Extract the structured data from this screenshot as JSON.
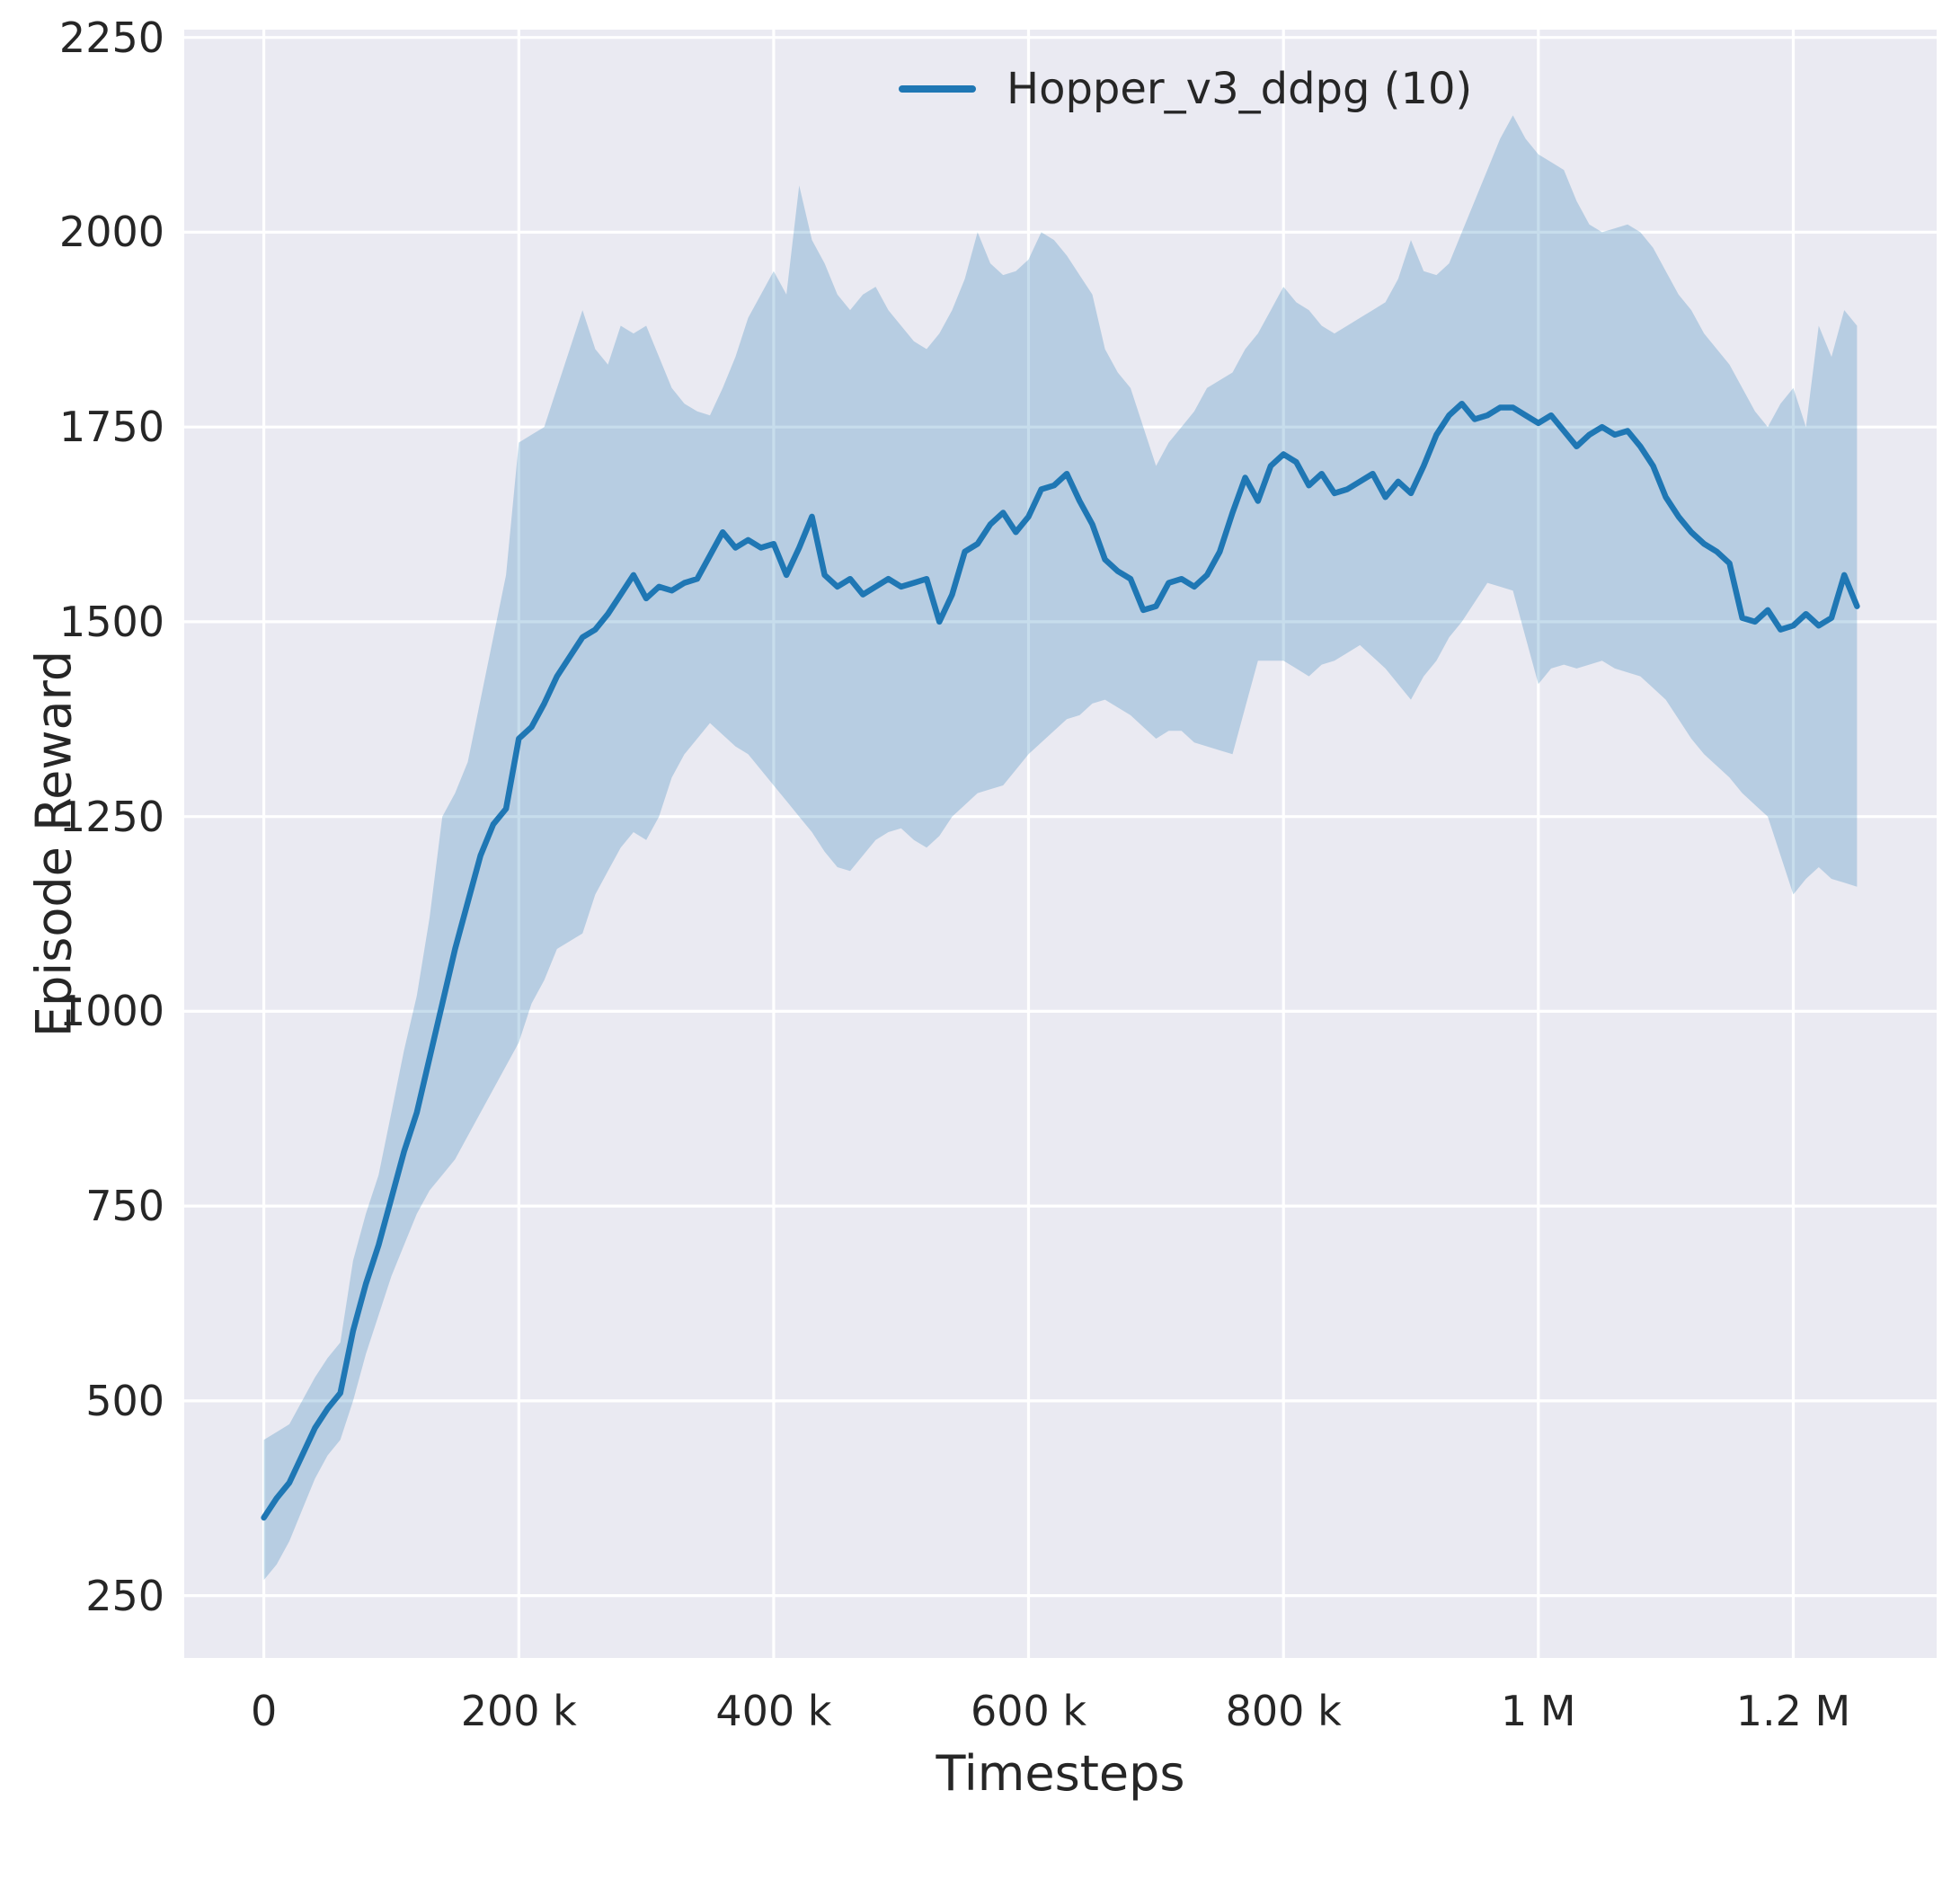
{
  "chart_data": {
    "type": "line",
    "title": "",
    "xlabel": "Timesteps",
    "ylabel": "Episode Reward",
    "legend": [
      "Hopper_v3_ddpg (10)"
    ],
    "legend_position": "upper right area inside plot, no frame",
    "grid": true,
    "plot_background": "#eaeaf2",
    "grid_color": "#ffffff",
    "line_color": "#1f77b4",
    "band_fill": "rgba(31,119,180,0.25)",
    "xlim": [
      -62500,
      1312500
    ],
    "ylim": [
      170,
      2260
    ],
    "xticks": {
      "values": [
        0,
        200000,
        400000,
        600000,
        800000,
        1000000,
        1200000
      ],
      "labels": [
        "0",
        "200 k",
        "400 k",
        "600 k",
        "800 k",
        "1 M",
        "1.2 M"
      ]
    },
    "yticks": {
      "values": [
        250,
        500,
        750,
        1000,
        1250,
        1500,
        1750,
        2000,
        2250
      ],
      "labels": [
        "250",
        "500",
        "750",
        "1000",
        "1250",
        "1500",
        "1750",
        "2000",
        "2250"
      ]
    },
    "x_units": "timesteps, values below in thousands",
    "x_k": [
      0,
      10,
      20,
      30,
      40,
      50,
      60,
      70,
      80,
      90,
      100,
      110,
      120,
      130,
      140,
      150,
      160,
      170,
      180,
      190,
      200,
      210,
      220,
      230,
      240,
      250,
      260,
      270,
      280,
      290,
      300,
      310,
      320,
      330,
      340,
      350,
      360,
      370,
      380,
      390,
      400,
      410,
      420,
      430,
      440,
      450,
      460,
      470,
      480,
      490,
      500,
      510,
      520,
      530,
      540,
      550,
      560,
      570,
      580,
      590,
      600,
      610,
      620,
      630,
      640,
      650,
      660,
      670,
      680,
      690,
      700,
      710,
      720,
      730,
      740,
      750,
      760,
      770,
      780,
      790,
      800,
      810,
      820,
      830,
      840,
      850,
      860,
      870,
      880,
      890,
      900,
      910,
      920,
      930,
      940,
      950,
      960,
      970,
      980,
      990,
      1000,
      1010,
      1020,
      1030,
      1040,
      1050,
      1060,
      1070,
      1080,
      1090,
      1100,
      1110,
      1120,
      1130,
      1140,
      1150,
      1160,
      1170,
      1180,
      1190,
      1200,
      1210,
      1220,
      1230,
      1240,
      1250
    ],
    "series": [
      {
        "name": "Hopper_v3_ddpg (10)",
        "mean": [
          350,
          375,
          395,
          430,
          465,
          490,
          510,
          590,
          650,
          700,
          760,
          820,
          870,
          940,
          1010,
          1080,
          1140,
          1200,
          1240,
          1260,
          1350,
          1365,
          1395,
          1430,
          1455,
          1480,
          1490,
          1510,
          1535,
          1560,
          1530,
          1545,
          1540,
          1550,
          1555,
          1585,
          1615,
          1595,
          1605,
          1595,
          1600,
          1560,
          1595,
          1635,
          1560,
          1545,
          1555,
          1535,
          1545,
          1555,
          1545,
          1550,
          1555,
          1500,
          1535,
          1590,
          1600,
          1625,
          1640,
          1615,
          1635,
          1670,
          1675,
          1690,
          1655,
          1625,
          1580,
          1565,
          1555,
          1515,
          1520,
          1550,
          1555,
          1545,
          1560,
          1590,
          1640,
          1685,
          1655,
          1700,
          1715,
          1705,
          1675,
          1690,
          1665,
          1670,
          1680,
          1690,
          1660,
          1680,
          1665,
          1700,
          1740,
          1765,
          1780,
          1760,
          1765,
          1775,
          1775,
          1765,
          1755,
          1765,
          1745,
          1725,
          1740,
          1750,
          1740,
          1745,
          1725,
          1700,
          1660,
          1635,
          1615,
          1600,
          1590,
          1575,
          1505,
          1500,
          1515,
          1490,
          1495,
          1510,
          1495,
          1505,
          1560,
          1520
        ],
        "lower": [
          270,
          290,
          320,
          360,
          400,
          430,
          450,
          500,
          560,
          610,
          660,
          700,
          740,
          770,
          790,
          810,
          840,
          870,
          900,
          930,
          960,
          1010,
          1040,
          1080,
          1090,
          1100,
          1150,
          1180,
          1210,
          1230,
          1220,
          1250,
          1300,
          1330,
          1350,
          1370,
          1355,
          1340,
          1330,
          1310,
          1290,
          1270,
          1250,
          1230,
          1205,
          1185,
          1180,
          1200,
          1220,
          1230,
          1235,
          1220,
          1210,
          1225,
          1250,
          1265,
          1280,
          1285,
          1290,
          1310,
          1330,
          1345,
          1360,
          1375,
          1380,
          1395,
          1400,
          1390,
          1380,
          1365,
          1350,
          1360,
          1360,
          1345,
          1340,
          1335,
          1330,
          1390,
          1450,
          1450,
          1450,
          1440,
          1430,
          1445,
          1450,
          1460,
          1470,
          1455,
          1440,
          1420,
          1400,
          1430,
          1450,
          1480,
          1500,
          1525,
          1550,
          1545,
          1540,
          1480,
          1420,
          1440,
          1445,
          1440,
          1445,
          1450,
          1440,
          1435,
          1430,
          1415,
          1400,
          1375,
          1350,
          1330,
          1315,
          1300,
          1280,
          1265,
          1250,
          1200,
          1150,
          1170,
          1185,
          1170,
          1165,
          1160
        ],
        "upper": [
          450,
          460,
          470,
          500,
          530,
          555,
          575,
          680,
          740,
          790,
          870,
          950,
          1020,
          1120,
          1250,
          1280,
          1320,
          1400,
          1480,
          1560,
          1730,
          1740,
          1750,
          1800,
          1850,
          1900,
          1850,
          1830,
          1880,
          1870,
          1880,
          1840,
          1800,
          1780,
          1770,
          1765,
          1800,
          1840,
          1890,
          1920,
          1950,
          1920,
          2060,
          1990,
          1960,
          1920,
          1900,
          1920,
          1930,
          1900,
          1880,
          1860,
          1850,
          1870,
          1900,
          1940,
          2000,
          1960,
          1945,
          1950,
          1965,
          2000,
          1990,
          1970,
          1945,
          1920,
          1850,
          1820,
          1800,
          1750,
          1700,
          1730,
          1750,
          1770,
          1800,
          1810,
          1820,
          1850,
          1870,
          1900,
          1930,
          1910,
          1900,
          1880,
          1870,
          1880,
          1890,
          1900,
          1910,
          1940,
          1990,
          1950,
          1945,
          1960,
          2000,
          2040,
          2080,
          2120,
          2150,
          2120,
          2100,
          2090,
          2080,
          2040,
          2010,
          2000,
          2005,
          2010,
          2000,
          1980,
          1950,
          1920,
          1900,
          1870,
          1850,
          1830,
          1800,
          1770,
          1750,
          1780,
          1800,
          1750,
          1880,
          1840,
          1900,
          1880
        ]
      }
    ]
  }
}
